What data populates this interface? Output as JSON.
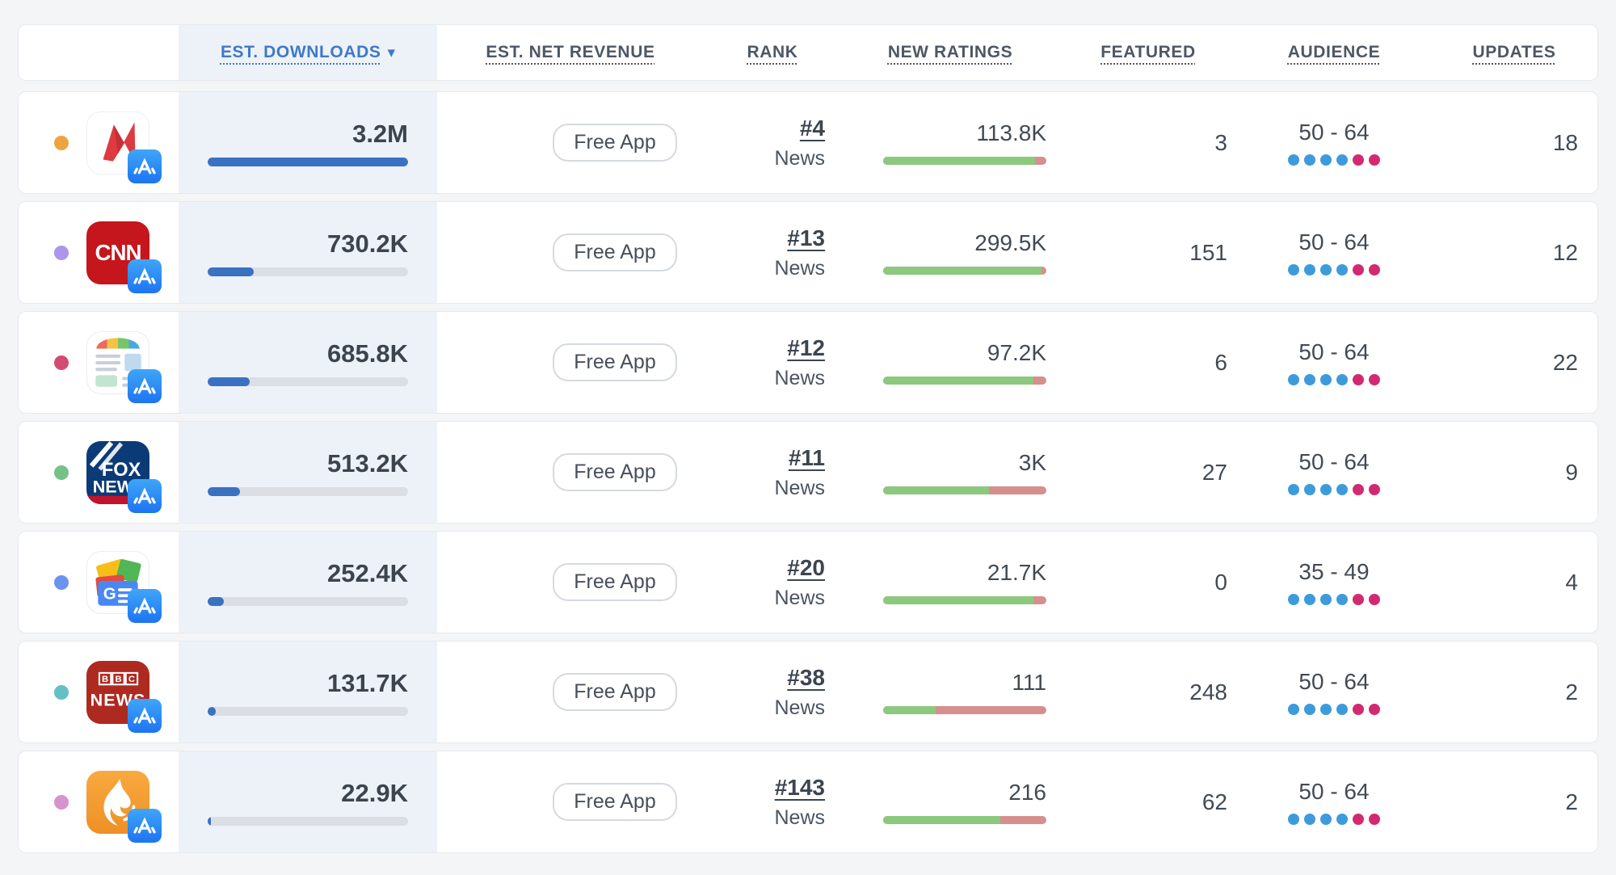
{
  "sort": {
    "column": "EST. DOWNLOADS",
    "direction": "desc"
  },
  "columns": [
    {
      "label": ""
    },
    {
      "label": "EST. DOWNLOADS",
      "sorted": true,
      "sort_indicator": "▾"
    },
    {
      "label": "EST. NET REVENUE"
    },
    {
      "label": "RANK"
    },
    {
      "label": "NEW RATINGS"
    },
    {
      "label": "FEATURED"
    },
    {
      "label": "AUDIENCE"
    },
    {
      "label": "UPDATES"
    }
  ],
  "colors": {
    "accent_blue": "#3F79C8",
    "downloads_bar_blue": "#3A72C2",
    "downloads_track_gray": "#dbdfe4",
    "ratings_positive_green": "#8CC87D",
    "ratings_negative_red": "#D58F8D",
    "audience_dot_blue": "#3D9BDB",
    "audience_dot_pink": "#D22A70"
  },
  "rows": [
    {
      "app": "NewsBreak",
      "icon": "newsbreak-app-icon",
      "dot_color": "#EEA43E",
      "downloads": "3.2M",
      "downloads_bar_pct": 100,
      "revenue_badge": "Free App",
      "rank": "#4",
      "rank_category": "News",
      "new_ratings": "113.8K",
      "ratings_positive_pct": 93,
      "featured": "3",
      "audience": "50 - 64",
      "audience_dots": [
        "blue",
        "blue",
        "blue",
        "blue",
        "pink",
        "pink"
      ],
      "updates": "18"
    },
    {
      "app": "CNN",
      "icon": "cnn-app-icon",
      "dot_color": "#AB96E8",
      "downloads": "730.2K",
      "downloads_bar_pct": 23,
      "revenue_badge": "Free App",
      "rank": "#13",
      "rank_category": "News",
      "new_ratings": "299.5K",
      "ratings_positive_pct": 97,
      "featured": "151",
      "audience": "50 - 64",
      "audience_dots": [
        "blue",
        "blue",
        "blue",
        "blue",
        "pink",
        "pink"
      ],
      "updates": "12"
    },
    {
      "app": "SmartNews",
      "icon": "smartnews-app-icon",
      "dot_color": "#D34B72",
      "downloads": "685.8K",
      "downloads_bar_pct": 21,
      "revenue_badge": "Free App",
      "rank": "#12",
      "rank_category": "News",
      "new_ratings": "97.2K",
      "ratings_positive_pct": 92,
      "featured": "6",
      "audience": "50 - 64",
      "audience_dots": [
        "blue",
        "blue",
        "blue",
        "blue",
        "pink",
        "pink"
      ],
      "updates": "22"
    },
    {
      "app": "Fox News",
      "icon": "foxnews-app-icon",
      "dot_color": "#74C287",
      "downloads": "513.2K",
      "downloads_bar_pct": 16,
      "revenue_badge": "Free App",
      "rank": "#11",
      "rank_category": "News",
      "new_ratings": "3K",
      "ratings_positive_pct": 65,
      "featured": "27",
      "audience": "50 - 64",
      "audience_dots": [
        "blue",
        "blue",
        "blue",
        "blue",
        "pink",
        "pink"
      ],
      "updates": "9"
    },
    {
      "app": "Google News",
      "icon": "googlenews-app-icon",
      "dot_color": "#6B93F0",
      "downloads": "252.4K",
      "downloads_bar_pct": 8,
      "revenue_badge": "Free App",
      "rank": "#20",
      "rank_category": "News",
      "new_ratings": "21.7K",
      "ratings_positive_pct": 92,
      "featured": "0",
      "audience": "35 - 49",
      "audience_dots": [
        "blue",
        "blue",
        "blue",
        "blue",
        "pink",
        "pink"
      ],
      "updates": "4"
    },
    {
      "app": "BBC News",
      "icon": "bbcnews-app-icon",
      "dot_color": "#65BFC6",
      "downloads": "131.7K",
      "downloads_bar_pct": 4,
      "revenue_badge": "Free App",
      "rank": "#38",
      "rank_category": "News",
      "new_ratings": "111",
      "ratings_positive_pct": 32,
      "featured": "248",
      "audience": "50 - 64",
      "audience_dots": [
        "blue",
        "blue",
        "blue",
        "blue",
        "pink",
        "pink"
      ],
      "updates": "2"
    },
    {
      "app": "Al Jazeera",
      "icon": "aljazeera-app-icon",
      "dot_color": "#D793CD",
      "downloads": "22.9K",
      "downloads_bar_pct": 1.5,
      "revenue_badge": "Free App",
      "rank": "#143",
      "rank_category": "News",
      "new_ratings": "216",
      "ratings_positive_pct": 72,
      "featured": "62",
      "audience": "50 - 64",
      "audience_dots": [
        "blue",
        "blue",
        "blue",
        "blue",
        "pink",
        "pink"
      ],
      "updates": "2"
    }
  ]
}
